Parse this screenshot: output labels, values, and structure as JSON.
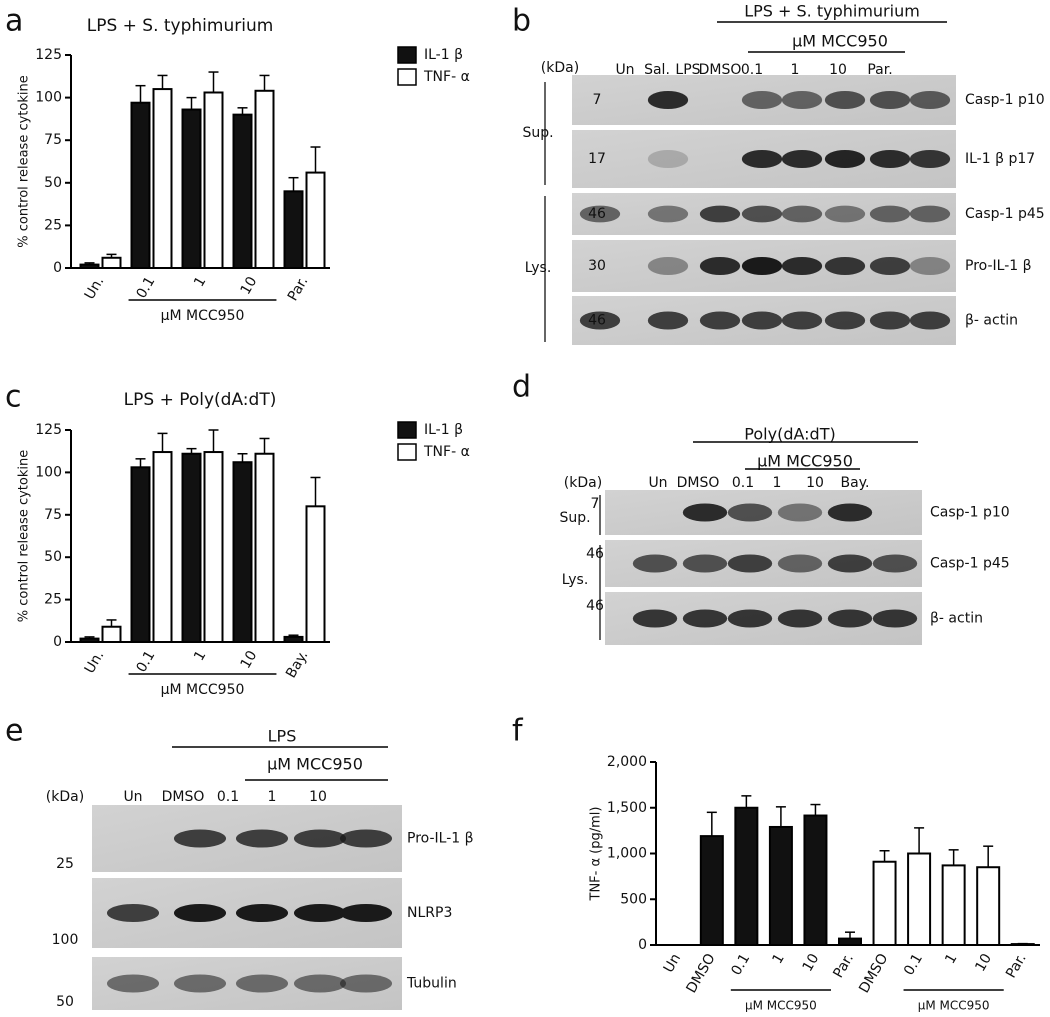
{
  "panels": [
    "a",
    "b",
    "c",
    "d",
    "e",
    "f"
  ],
  "chart_data": [
    {
      "type": "bar",
      "title": "LPS + S. typhimurium",
      "y_label": "% control release cytokine",
      "categories": [
        "Un.",
        "0.1",
        "1",
        "10",
        "Par."
      ],
      "group_label": "μM MCC950",
      "series": [
        {
          "name": "IL-1 β",
          "color": "#111111",
          "values": [
            2,
            97,
            93,
            90,
            45
          ],
          "errors": [
            1,
            10,
            7,
            4,
            8
          ]
        },
        {
          "name": "TNF- α",
          "color": "#ffffff",
          "values": [
            6,
            105,
            103,
            104,
            56
          ],
          "errors": [
            2,
            8,
            12,
            9,
            15
          ]
        }
      ],
      "ylim": [
        0,
        125
      ],
      "yticks": [
        0,
        25,
        50,
        75,
        100,
        125
      ]
    },
    {
      "type": "bar",
      "title": "LPS + Poly(dA:dT)",
      "y_label": "% control release cytokine",
      "categories": [
        "Un.",
        "0.1",
        "1",
        "10",
        "Bay."
      ],
      "group_label": "μM MCC950",
      "series": [
        {
          "name": "IL-1 β",
          "color": "#111111",
          "values": [
            2,
            103,
            111,
            106,
            3
          ],
          "errors": [
            1,
            5,
            3,
            5,
            1
          ]
        },
        {
          "name": "TNF- α",
          "color": "#ffffff",
          "values": [
            9,
            112,
            112,
            111,
            80
          ],
          "errors": [
            4,
            11,
            13,
            9,
            17
          ]
        }
      ],
      "ylim": [
        0,
        125
      ],
      "yticks": [
        0,
        25,
        50,
        75,
        100,
        125
      ]
    },
    {
      "type": "bar",
      "y_label": "TNF- α (pg/ml)",
      "categories": [
        "Un",
        "DMSO",
        "0.1",
        "1",
        "10",
        "Par.",
        "DMSO",
        "0.1",
        "1",
        "10",
        "Par."
      ],
      "group_label": "μM MCC950",
      "values": [
        0,
        1190,
        1500,
        1290,
        1415,
        70,
        910,
        1000,
        870,
        850,
        10
      ],
      "errors": [
        0,
        260,
        130,
        220,
        120,
        70,
        120,
        280,
        170,
        230,
        5
      ],
      "colors": [
        "#111111",
        "#111111",
        "#111111",
        "#111111",
        "#111111",
        "#111111",
        "#ffffff",
        "#ffffff",
        "#ffffff",
        "#ffffff",
        "#ffffff"
      ],
      "ylim": [
        0,
        2000
      ],
      "yticks": [
        0,
        500,
        {
          "value": 1000,
          "label": "1,000"
        },
        {
          "value": 1500,
          "label": "1,500"
        },
        {
          "value": 2000,
          "label": "2,000"
        }
      ]
    }
  ],
  "blots": [
    {
      "header": "LPS + S. typhimurium",
      "subheader": "μM MCC950",
      "kda_unit": "(kDa)",
      "lanes": [
        "Un",
        "Sal.",
        "LPS",
        "DMSO",
        "0.1",
        "1",
        "10",
        "Par."
      ],
      "sections": [
        "Sup.",
        "Lys."
      ],
      "rows": [
        {
          "kda": "7",
          "label": "Casp-1 p10"
        },
        {
          "kda": "17",
          "label": "IL-1 β p17"
        },
        {
          "kda": "46",
          "label": "Casp-1 p45"
        },
        {
          "kda": "30",
          "label": "Pro-IL-1 β"
        },
        {
          "kda": "46",
          "label": "β- actin"
        }
      ]
    },
    {
      "header": "Poly(dA:dT)",
      "subheader": "μM MCC950",
      "kda_unit": "(kDa)",
      "lanes": [
        "Un",
        "DMSO",
        "0.1",
        "1",
        "10",
        "Bay."
      ],
      "sections": [
        "Sup.",
        "Lys."
      ],
      "rows": [
        {
          "kda": "7",
          "label": "Casp-1 p10"
        },
        {
          "kda": "46",
          "label": "Casp-1 p45"
        },
        {
          "kda": "46",
          "label": "β- actin"
        }
      ]
    },
    {
      "header": "LPS",
      "subheader": "μM MCC950",
      "kda_unit": "(kDa)",
      "lanes": [
        "Un",
        "DMSO",
        "0.1",
        "1",
        "10"
      ],
      "rows": [
        {
          "kda": "25",
          "label": "Pro-IL-1 β"
        },
        {
          "kda": "100",
          "label": "NLRP3"
        },
        {
          "kda": "50",
          "label": "Tubulin"
        }
      ]
    }
  ]
}
